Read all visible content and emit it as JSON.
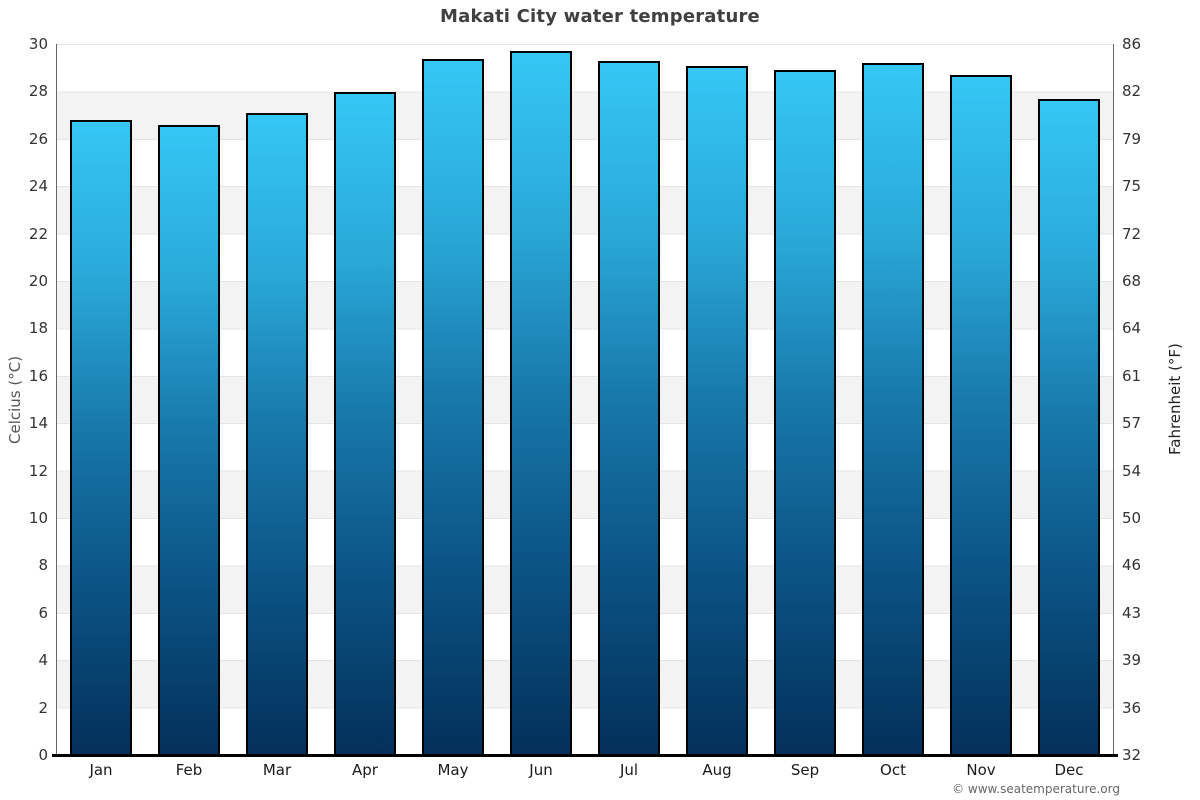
{
  "title": "Makati City water temperature",
  "footer": {
    "credit": "© www.seatemperature.org"
  },
  "chart_data": {
    "type": "bar",
    "title": "Makati City water temperature",
    "categories": [
      "Jan",
      "Feb",
      "Mar",
      "Apr",
      "May",
      "Jun",
      "Jul",
      "Aug",
      "Sep",
      "Oct",
      "Nov",
      "Dec"
    ],
    "values": [
      26.7,
      26.5,
      27.0,
      27.9,
      29.3,
      29.6,
      29.2,
      29.0,
      28.8,
      29.1,
      28.6,
      27.6
    ],
    "unit": "°C",
    "ylabel_left": "Celcius (°C)",
    "ylabel_right": "Fahrenheit (°F)",
    "ylim_celsius": [
      0,
      30
    ],
    "yticks_celsius": [
      0,
      2,
      4,
      6,
      8,
      10,
      12,
      14,
      16,
      18,
      20,
      22,
      24,
      26,
      28,
      30
    ],
    "yticks_fahrenheit": [
      32,
      36,
      39,
      43,
      46,
      50,
      54,
      57,
      61,
      64,
      68,
      72,
      75,
      79,
      82,
      86
    ],
    "grid": "alternating horizontal bands every 2°C, light gridlines, no legend",
    "legend": "none",
    "colors": {
      "bar_gradient_top": "#35c7f5",
      "bar_gradient_mid": "#1879ab",
      "bar_gradient_bottom": "#03305a",
      "bar_border": "#000000",
      "band_light": "#ffffff",
      "band_gray": "#f3f3f3",
      "gridline": "#e4e4e4",
      "axis_line": "#666666",
      "baseline": "#000000",
      "title_color": "#404040",
      "tick_color": "#333333",
      "left_axis_label_color": "#555555",
      "right_axis_label_color": "#222222",
      "footer_color": "#666666"
    }
  }
}
